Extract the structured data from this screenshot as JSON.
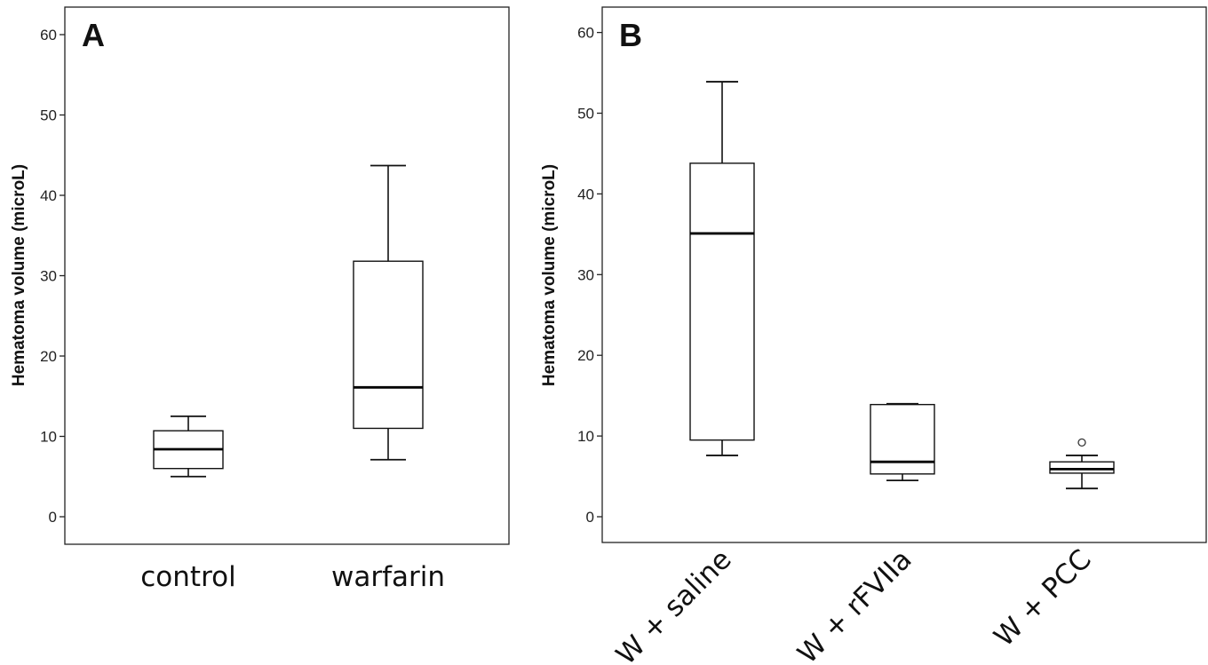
{
  "chart_data": [
    {
      "type": "box",
      "panel_label": "A",
      "ylabel": "Hematoma volume (microL)",
      "ylim": [
        -3,
        63
      ],
      "yticks": [
        0,
        10,
        20,
        30,
        40,
        50,
        60
      ],
      "categories": [
        "control",
        "warfarin"
      ],
      "boxes": [
        {
          "category": "control",
          "whisker_low": 5,
          "q1": 6,
          "median": 8.4,
          "q3": 10.7,
          "whisker_high": 12.5,
          "outliers": []
        },
        {
          "category": "warfarin",
          "whisker_low": 7.1,
          "q1": 11,
          "median": 16.1,
          "q3": 31.8,
          "whisker_high": 43.7,
          "outliers": []
        }
      ],
      "grid": false
    },
    {
      "type": "box",
      "panel_label": "B",
      "ylabel": "Hematoma volume (microL)",
      "ylim": [
        -3,
        63
      ],
      "yticks": [
        0,
        10,
        20,
        30,
        40,
        50,
        60
      ],
      "categories": [
        "W + saline",
        "W + rFVIIa",
        "W + PCC"
      ],
      "boxes": [
        {
          "category": "W + saline",
          "whisker_low": 7.6,
          "q1": 9.5,
          "median": 35.1,
          "q3": 43.8,
          "whisker_high": 53.9,
          "outliers": []
        },
        {
          "category": "W + rFVIIa",
          "whisker_low": 4.5,
          "q1": 5.3,
          "median": 6.8,
          "q3": 13.9,
          "whisker_high": 14.0,
          "outliers": []
        },
        {
          "category": "W + PCC",
          "whisker_low": 3.5,
          "q1": 5.4,
          "median": 5.9,
          "q3": 6.8,
          "whisker_high": 7.6,
          "outliers": [
            9.2
          ]
        }
      ],
      "grid": false
    }
  ]
}
